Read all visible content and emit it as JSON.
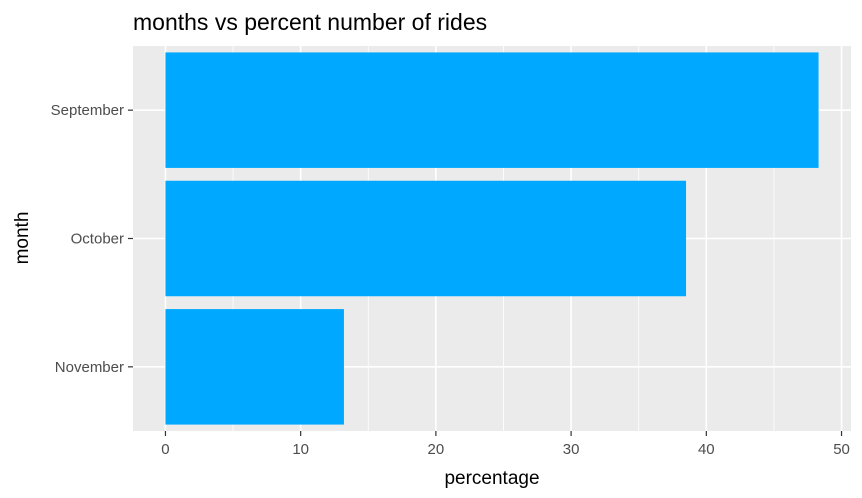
{
  "chart_data": {
    "type": "bar",
    "orientation": "horizontal",
    "title": "months vs percent number of rides",
    "xlabel": "percentage",
    "ylabel": "month",
    "categories": [
      "September",
      "October",
      "November"
    ],
    "values": [
      48.3,
      38.5,
      13.2
    ],
    "xlim": [
      -2.4,
      50.7
    ],
    "xticks": [
      0,
      10,
      20,
      30,
      40,
      50
    ],
    "x_minor_ticks": [
      5,
      15,
      25,
      35,
      45
    ],
    "grid": true,
    "legend": "none",
    "colors": {
      "bar": "#00A9FF",
      "panel": "#EBEBEB",
      "grid": "#FFFFFF",
      "tick": "#333333"
    }
  }
}
